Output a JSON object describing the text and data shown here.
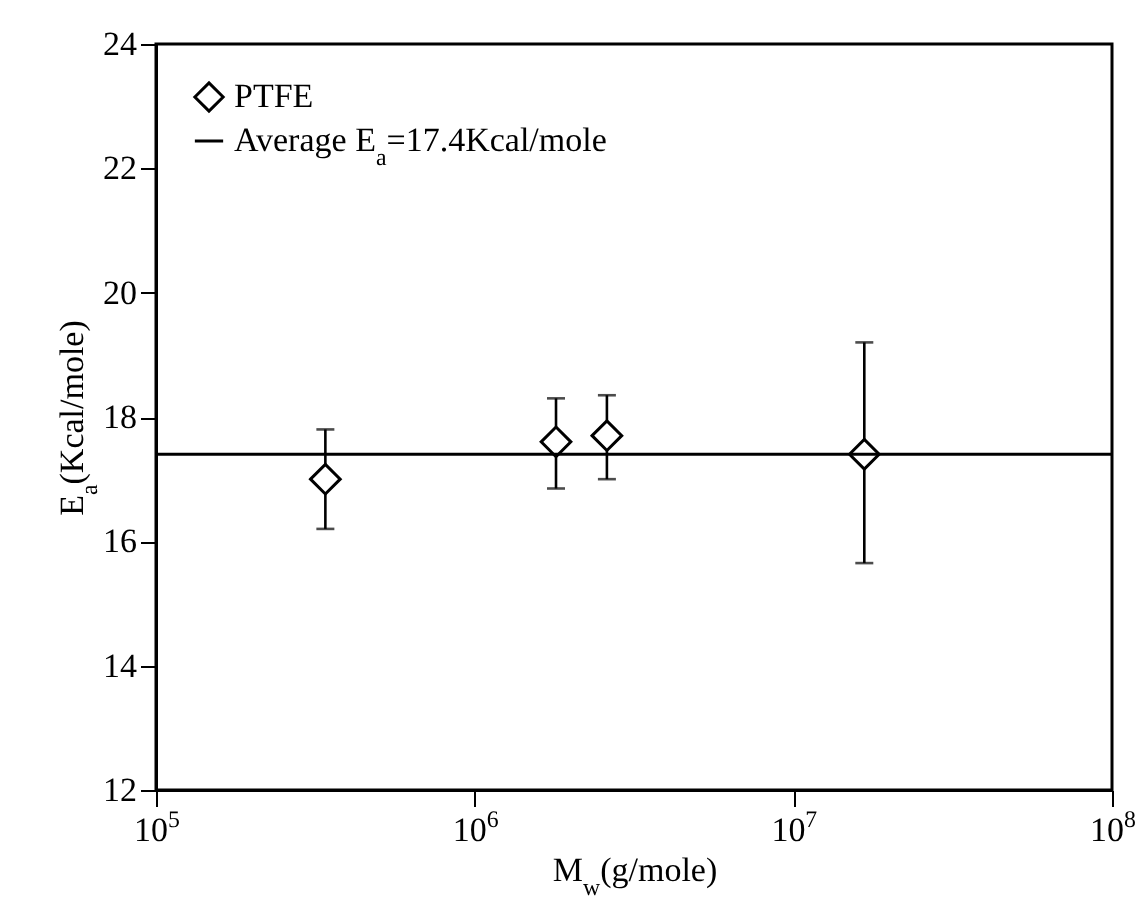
{
  "chart_data": {
    "type": "scatter",
    "xlabel": "M$_{w}$(g/mole)",
    "ylabel": "E$_{a}$(Kcal/mole)",
    "x": [
      340000,
      1800000,
      2600000,
      16700000
    ],
    "series": [
      {
        "name": "PTFE",
        "color": "#000000",
        "values": [
          17.0,
          17.6,
          17.7,
          17.4
        ],
        "errors": [
          [
            16.2,
            17.8
          ],
          [
            16.85,
            18.3
          ],
          [
            17.0,
            18.35
          ],
          [
            15.65,
            19.2
          ]
        ]
      }
    ],
    "ref_lines": [
      {
        "axis": "y",
        "value": 17.4,
        "label": "Average  E$_{a}$=17.4Kcal/mole",
        "color": "#000000"
      }
    ],
    "log": "x",
    "marker": "diamond",
    "legend": "top left",
    "grid": false,
    "xlim": [
      100000,
      100000000
    ],
    "ylim": [
      12,
      24
    ],
    "xticks": [
      {
        "value": 100000,
        "label": "10$^{5}$"
      },
      {
        "value": 1000000,
        "label": "10$^{6}$"
      },
      {
        "value": 10000000,
        "label": "10$^{7}$"
      },
      {
        "value": 100000000,
        "label": "10$^{8}$"
      }
    ],
    "yticks": [
      12,
      14,
      16,
      18,
      20,
      22,
      24
    ]
  }
}
